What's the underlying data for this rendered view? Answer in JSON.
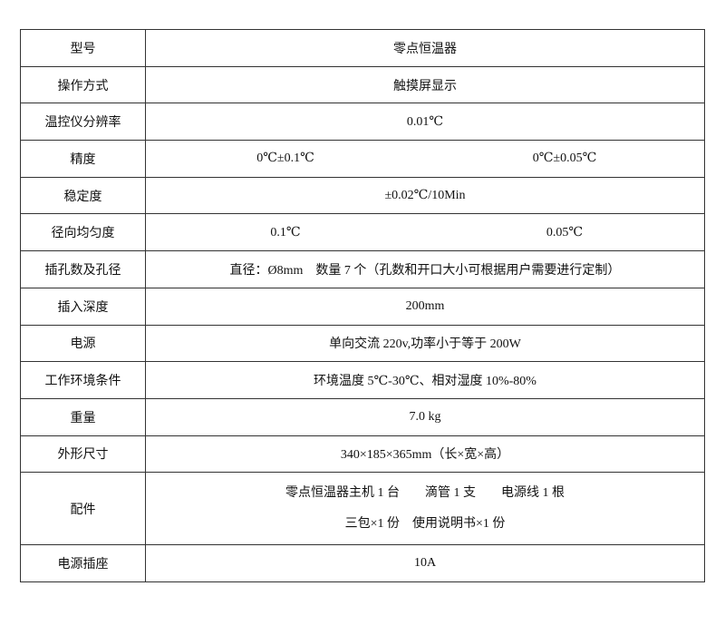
{
  "table": {
    "rows": [
      {
        "label": "型号",
        "values": [
          "零点恒温器"
        ]
      },
      {
        "label": "操作方式",
        "values": [
          "触摸屏显示"
        ]
      },
      {
        "label": "温控仪分辨率",
        "values": [
          "0.01℃"
        ]
      },
      {
        "label": "精度",
        "values": [
          "0℃±0.1℃",
          "0℃±0.05℃"
        ]
      },
      {
        "label": "稳定度",
        "values": [
          "±0.02℃/10Min"
        ]
      },
      {
        "label": "径向均匀度",
        "values": [
          "0.1℃",
          "0.05℃"
        ]
      },
      {
        "label": "插孔数及孔径",
        "values": [
          "直径：Ø8mm　数量 7 个（孔数和开口大小可根据用户需要进行定制）"
        ]
      },
      {
        "label": "插入深度",
        "values": [
          "200mm"
        ]
      },
      {
        "label": "电源",
        "values": [
          "单向交流 220v,功率小于等于 200W"
        ]
      },
      {
        "label": "工作环境条件",
        "values": [
          "环境温度 5℃-30℃、相对湿度 10%-80%"
        ]
      },
      {
        "label": "重量",
        "values": [
          "7.0 kg"
        ]
      },
      {
        "label": "外形尺寸",
        "values": [
          "340×185×365mm（长×宽×高）"
        ]
      },
      {
        "label": "配件",
        "lines": [
          "零点恒温器主机 1 台　　滴管 1 支　　电源线 1 根",
          "三包×1 份　使用说明书×1 份"
        ]
      },
      {
        "label": "电源插座",
        "values": [
          "10A"
        ]
      }
    ]
  }
}
